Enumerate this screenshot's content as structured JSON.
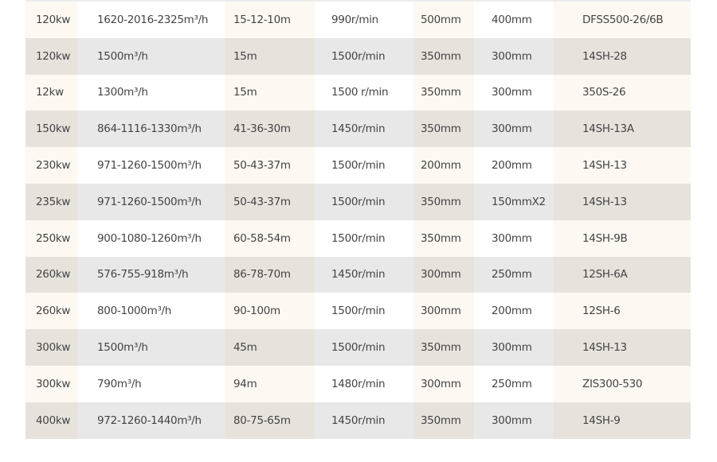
{
  "rows": [
    [
      "120kw",
      "1620-2016-2325m³/h",
      "15-12-10m",
      "990r/min",
      "500mm",
      "400mm",
      "DFSS500-26/6B"
    ],
    [
      "120kw",
      "1500m³/h",
      "15m",
      "1500r/min",
      "350mm",
      "300mm",
      "14SH-28"
    ],
    [
      "12kw",
      "1300m³/h",
      "15m",
      "1500 r/min",
      "350mm",
      "300mm",
      "350S-26"
    ],
    [
      "150kw",
      "864-1116-1330m³/h",
      "41-36-30m",
      "1450r/min",
      "350mm",
      "300mm",
      "14SH-13A"
    ],
    [
      "230kw",
      "971-1260-1500m³/h",
      "50-43-37m",
      "1500r/min",
      "200mm",
      "200mm",
      "14SH-13"
    ],
    [
      "235kw",
      "971-1260-1500m³/h",
      "50-43-37m",
      "1500r/min",
      "350mm",
      "150mmX2",
      "14SH-13"
    ],
    [
      "250kw",
      "900-1080-1260m³/h",
      "60-58-54m",
      "1500r/min",
      "350mm",
      "300mm",
      "14SH-9B"
    ],
    [
      "260kw",
      "576-755-918m³/h",
      "86-78-70m",
      "1450r/min",
      "300mm",
      "250mm",
      "12SH-6A"
    ],
    [
      "260kw",
      "800-1000m³/h",
      "90-100m",
      "1500r/min",
      "300mm",
      "200mm",
      "12SH-6"
    ],
    [
      "300kw",
      "1500m³/h",
      "45m",
      "1500r/min",
      "350mm",
      "300mm",
      "14SH-13"
    ],
    [
      "300kw",
      "790m³/h",
      "94m",
      "1480r/min",
      "300mm",
      "250mm",
      "ZIS300-530"
    ],
    [
      "400kw",
      "972-1260-1440m³/h",
      "80-75-65m",
      "1450r/min",
      "350mm",
      "300mm",
      "14SH-9"
    ]
  ]
}
